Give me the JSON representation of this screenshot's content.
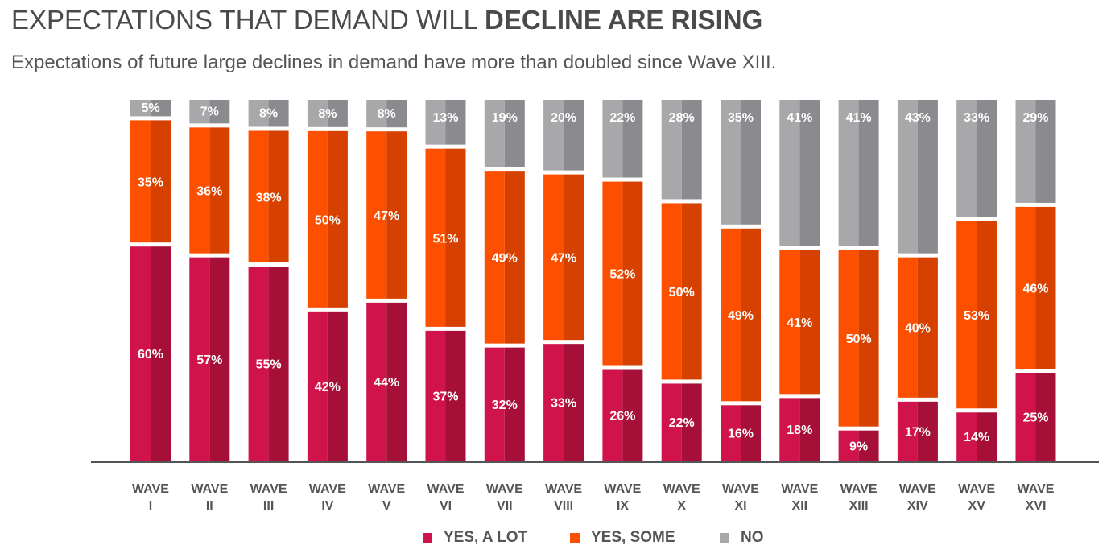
{
  "header": {
    "title_plain": "EXPECTATIONS THAT DEMAND WILL ",
    "title_bold": "DECLINE ARE RISING",
    "subtitle": "Expectations of future large declines in demand have more than doubled since Wave XIII."
  },
  "colors": {
    "yes_a_lot": "#d0134a",
    "yes_a_lot_dark": "#a61038",
    "yes_some": "#fc5000",
    "yes_some_dark": "#d64100",
    "no": "#a8a8ab",
    "no_dark": "#8b8b8f"
  },
  "chart_data": {
    "type": "bar",
    "stacked": true,
    "percent": true,
    "title": "EXPECTATIONS THAT DEMAND WILL DECLINE ARE RISING",
    "subtitle": "Expectations of future large declines in demand have more than doubled since Wave XIII.",
    "categories": [
      [
        "WAVE",
        "I"
      ],
      [
        "WAVE",
        "II"
      ],
      [
        "WAVE",
        "III"
      ],
      [
        "WAVE",
        "IV"
      ],
      [
        "WAVE",
        "V"
      ],
      [
        "WAVE",
        "VI"
      ],
      [
        "WAVE",
        "VII"
      ],
      [
        "WAVE",
        "VIII"
      ],
      [
        "WAVE",
        "IX"
      ],
      [
        "WAVE",
        "X"
      ],
      [
        "WAVE",
        "XI"
      ],
      [
        "WAVE",
        "XII"
      ],
      [
        "WAVE",
        "XIII"
      ],
      [
        "WAVE",
        "XIV"
      ],
      [
        "WAVE",
        "XV"
      ],
      [
        "WAVE",
        "XVI"
      ]
    ],
    "series": [
      {
        "name": "YES, A LOT",
        "values": [
          60,
          57,
          55,
          42,
          44,
          37,
          32,
          33,
          26,
          22,
          16,
          18,
          9,
          17,
          14,
          25
        ]
      },
      {
        "name": "YES, SOME",
        "values": [
          35,
          36,
          38,
          50,
          47,
          51,
          49,
          47,
          52,
          50,
          49,
          41,
          50,
          40,
          53,
          46
        ]
      },
      {
        "name": "NO",
        "values": [
          5,
          7,
          8,
          8,
          8,
          13,
          19,
          20,
          22,
          28,
          35,
          41,
          41,
          43,
          33,
          29
        ]
      }
    ],
    "value_suffix": "%",
    "xlabel": "",
    "ylabel": "",
    "legend": "bottom-center",
    "grid": false
  }
}
